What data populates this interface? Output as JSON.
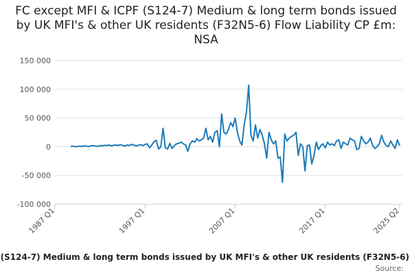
{
  "chart_data": {
    "type": "line",
    "title": "FC except MFI & ICPF (S124-7) Medium & long term bonds issued by UK MFI's & other UK residents (F32N5-6) Flow Liability CP £m: NSA",
    "x_label": "(S124-7) Medium & long term bonds issued by UK MFI's & other UK residents (F32N5-6)",
    "source": "Source:",
    "categories": [
      "1987 Q1",
      null,
      null,
      null,
      null,
      null,
      null,
      null,
      null,
      null,
      null,
      null,
      null,
      null,
      null,
      null,
      null,
      null,
      null,
      null,
      null,
      null,
      null,
      null,
      null,
      null,
      null,
      null,
      null,
      null,
      null,
      null,
      null,
      null,
      null,
      null,
      null,
      null,
      null,
      null,
      "1997 Q1",
      null,
      null,
      null,
      null,
      null,
      null,
      null,
      null,
      null,
      null,
      null,
      null,
      null,
      null,
      null,
      null,
      null,
      null,
      null,
      null,
      null,
      null,
      null,
      null,
      null,
      null,
      null,
      null,
      null,
      null,
      null,
      null,
      null,
      null,
      null,
      null,
      null,
      null,
      null,
      "2007 Q1",
      null,
      null,
      null,
      null,
      null,
      null,
      null,
      null,
      null,
      null,
      null,
      null,
      null,
      null,
      null,
      null,
      null,
      null,
      null,
      null,
      null,
      null,
      null,
      null,
      null,
      null,
      null,
      null,
      null,
      null,
      null,
      null,
      null,
      null,
      null,
      null,
      null,
      null,
      null,
      "2017 Q1",
      null,
      null,
      null,
      null,
      null,
      null,
      null,
      null,
      null,
      null,
      null,
      null,
      null,
      null,
      null,
      null,
      null,
      null,
      null,
      null,
      null,
      null,
      null,
      null,
      null,
      null,
      null,
      null,
      null,
      null,
      null,
      null,
      "2025 Q2"
    ],
    "series": [
      {
        "name": null,
        "color": "#1b7bb8",
        "values": [
          null,
          null,
          null,
          null,
          null,
          null,
          null,
          500,
          1000,
          0,
          500,
          1000,
          500,
          1500,
          1000,
          500,
          1500,
          2000,
          1000,
          500,
          2000,
          1500,
          2500,
          2000,
          3000,
          1500,
          2500,
          3000,
          2000,
          3500,
          2500,
          1000,
          3000,
          2000,
          4000,
          3000,
          1500,
          2500,
          3500,
          2000,
          4000,
          5000,
          -2000,
          3000,
          9000,
          11000,
          -4000,
          0,
          32000,
          -2000,
          -4000,
          6000,
          -3000,
          2000,
          5000,
          6000,
          8000,
          5000,
          3000,
          -8000,
          5000,
          10000,
          8000,
          14000,
          10000,
          12000,
          15000,
          32000,
          12000,
          18000,
          8000,
          25000,
          28000,
          0,
          57000,
          25000,
          22000,
          30000,
          42000,
          35000,
          50000,
          25000,
          10000,
          3000,
          38000,
          60000,
          107000,
          20000,
          10000,
          38000,
          15000,
          30000,
          20000,
          5000,
          -20000,
          25000,
          12000,
          5000,
          10000,
          -20000,
          -18000,
          -62000,
          22000,
          10000,
          15000,
          18000,
          20000,
          25000,
          -15000,
          5000,
          0,
          -42000,
          2000,
          3000,
          -30000,
          -15000,
          8000,
          -5000,
          2000,
          5000,
          -2000,
          8000,
          3000,
          5000,
          2000,
          10000,
          12000,
          -3000,
          8000,
          5000,
          3000,
          15000,
          12000,
          10000,
          -5000,
          -3000,
          18000,
          10000,
          5000,
          8000,
          15000,
          2000,
          -3000,
          0,
          5000,
          20000,
          8000,
          2000,
          0,
          10000,
          3000,
          -3000,
          12000,
          2000
        ]
      }
    ],
    "ylim": [
      -100000,
      150000
    ],
    "yticks": [
      {
        "value": -100000,
        "label": "-100 000"
      },
      {
        "value": -50000,
        "label": "-50 000"
      },
      0,
      {
        "value": 50000,
        "label": "50 000"
      },
      {
        "value": 100000,
        "label": "100 000"
      },
      {
        "value": 150000,
        "label": "150 000"
      }
    ],
    "grid": true
  }
}
